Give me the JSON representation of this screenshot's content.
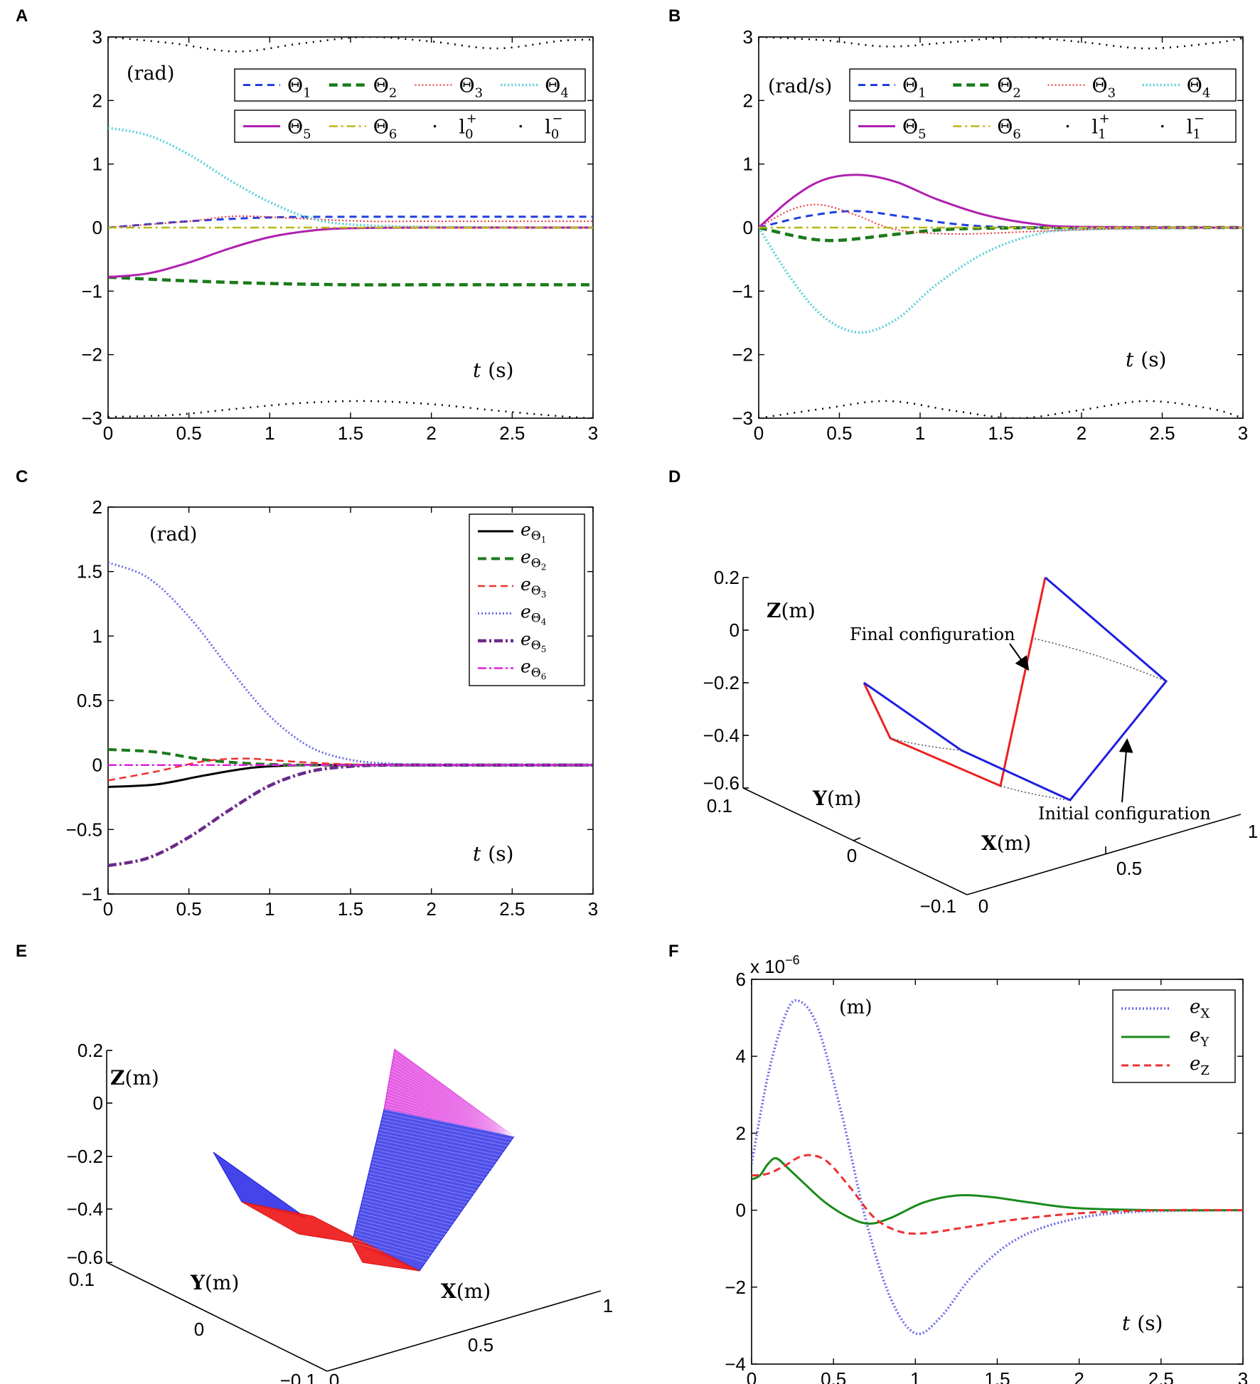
{
  "colors": {
    "blue": "#1f3fe0",
    "green": "#1a7a1a",
    "red": "#ee3030",
    "cyan": "#5ad0d8",
    "magenta": "#b020b0",
    "olive": "#b8b818",
    "black": "#000000",
    "purple": "#6a2a8a",
    "pink": "#e020e0",
    "lightblue": "#6a6ae8",
    "darkgreen": "#1a8a1a"
  },
  "panels": {
    "A": {
      "letter": "A"
    },
    "B": {
      "letter": "B"
    },
    "C": {
      "letter": "C"
    },
    "D": {
      "letter": "D"
    },
    "E": {
      "letter": "E"
    },
    "F": {
      "letter": "F"
    }
  },
  "chart_data": [
    {
      "id": "A",
      "type": "line",
      "unit_label": "(rad)",
      "xlabel_var": "t",
      "xlabel_unit": "(s)",
      "xlim": [
        0,
        3
      ],
      "ylim": [
        -3,
        3
      ],
      "xticks": [
        "0",
        "0.5",
        "1",
        "1.5",
        "2",
        "2.5",
        "3"
      ],
      "yticks": [
        "−3",
        "−2",
        "−1",
        "0",
        "1",
        "2",
        "3"
      ],
      "legend_row1": [
        "Θ1",
        "Θ2",
        "Θ3",
        "Θ4"
      ],
      "legend_row2": [
        "Θ5",
        "Θ6",
        "l0+",
        "l0−"
      ],
      "series": [
        {
          "name": "Θ1",
          "x": [
            0,
            0.5,
            1,
            1.5,
            2,
            2.5,
            3
          ],
          "y": [
            0,
            0.1,
            0.16,
            0.17,
            0.17,
            0.17,
            0.17
          ]
        },
        {
          "name": "Θ2",
          "x": [
            0,
            0.5,
            1,
            1.5,
            2,
            2.5,
            3
          ],
          "y": [
            -0.78,
            -0.84,
            -0.88,
            -0.9,
            -0.9,
            -0.9,
            -0.9
          ]
        },
        {
          "name": "Θ3",
          "x": [
            0,
            0.5,
            0.8,
            1.2,
            1.6,
            2,
            3
          ],
          "y": [
            0,
            0.1,
            0.18,
            0.14,
            0.1,
            0.1,
            0.1
          ]
        },
        {
          "name": "Θ4",
          "x": [
            0,
            0.25,
            0.5,
            0.75,
            1,
            1.25,
            1.5,
            2,
            3
          ],
          "y": [
            1.57,
            1.45,
            1.15,
            0.75,
            0.4,
            0.15,
            0.05,
            0.01,
            0
          ]
        },
        {
          "name": "Θ5",
          "x": [
            0,
            0.25,
            0.5,
            0.75,
            1,
            1.25,
            1.5,
            2,
            3
          ],
          "y": [
            -0.78,
            -0.72,
            -0.55,
            -0.33,
            -0.15,
            -0.05,
            -0.01,
            0,
            0
          ]
        },
        {
          "name": "Θ6",
          "x": [
            0,
            3
          ],
          "y": [
            0,
            0
          ]
        },
        {
          "name": "l0+",
          "x": [
            0,
            0.4,
            0.8,
            1.2,
            1.6,
            2,
            2.4,
            2.8,
            3
          ],
          "y": [
            3,
            2.9,
            2.77,
            2.9,
            3.0,
            2.93,
            2.82,
            2.94,
            2.96
          ]
        },
        {
          "name": "l0−",
          "x": [
            0,
            0.4,
            0.8,
            1.2,
            1.6,
            2,
            2.4,
            2.8,
            3
          ],
          "y": [
            -2.98,
            -2.95,
            -2.85,
            -2.76,
            -2.73,
            -2.78,
            -2.88,
            -2.97,
            -3.0
          ]
        }
      ]
    },
    {
      "id": "B",
      "type": "line",
      "unit_label": "(rad/s)",
      "xlabel_var": "t",
      "xlabel_unit": "(s)",
      "xlim": [
        0,
        3
      ],
      "ylim": [
        -3,
        3
      ],
      "xticks": [
        "0",
        "0.5",
        "1",
        "1.5",
        "2",
        "2.5",
        "3"
      ],
      "yticks": [
        "−3",
        "−2",
        "−1",
        "0",
        "1",
        "2",
        "3"
      ],
      "legend_row1": [
        "Θ̇1",
        "Θ̇2",
        "Θ̇3",
        "Θ̇4"
      ],
      "legend_row2": [
        "Θ̇5",
        "Θ̇6",
        "l1+",
        "l1−"
      ],
      "series": [
        {
          "name": "Θ̇1",
          "x": [
            0,
            0.3,
            0.6,
            0.9,
            1.2,
            1.5,
            2,
            3
          ],
          "y": [
            0,
            0.18,
            0.26,
            0.17,
            0.06,
            0.01,
            0,
            0
          ]
        },
        {
          "name": "Θ̇2",
          "x": [
            0,
            0.3,
            0.5,
            0.8,
            1.1,
            1.4,
            2,
            3
          ],
          "y": [
            0,
            -0.17,
            -0.2,
            -0.12,
            -0.04,
            -0.01,
            0,
            0
          ]
        },
        {
          "name": "Θ̇3",
          "x": [
            0,
            0.2,
            0.38,
            0.6,
            0.8,
            1.0,
            1.3,
            1.7,
            2.2,
            3
          ],
          "y": [
            0,
            0.28,
            0.36,
            0.2,
            0,
            -0.08,
            -0.1,
            -0.06,
            -0.02,
            0
          ]
        },
        {
          "name": "Θ̇4",
          "x": [
            0,
            0.2,
            0.4,
            0.62,
            0.85,
            1.1,
            1.4,
            1.7,
            2,
            3
          ],
          "y": [
            0,
            -0.8,
            -1.4,
            -1.65,
            -1.45,
            -0.9,
            -0.4,
            -0.12,
            -0.03,
            0
          ]
        },
        {
          "name": "Θ̇5",
          "x": [
            0,
            0.2,
            0.4,
            0.62,
            0.85,
            1.1,
            1.4,
            1.7,
            2,
            3
          ],
          "y": [
            0,
            0.45,
            0.75,
            0.83,
            0.72,
            0.45,
            0.2,
            0.06,
            0.01,
            0
          ]
        },
        {
          "name": "Θ̇6",
          "x": [
            0,
            3
          ],
          "y": [
            0,
            0
          ]
        },
        {
          "name": "l1+",
          "x": [
            0,
            0.4,
            0.8,
            1.2,
            1.6,
            2,
            2.4,
            2.8,
            3
          ],
          "y": [
            3,
            2.95,
            2.85,
            2.92,
            3.0,
            2.92,
            2.82,
            2.9,
            2.98
          ]
        },
        {
          "name": "l1−",
          "x": [
            0,
            0.4,
            0.8,
            1.2,
            1.6,
            2,
            2.4,
            2.8,
            3
          ],
          "y": [
            -3,
            -2.85,
            -2.73,
            -2.88,
            -3.0,
            -2.87,
            -2.73,
            -2.85,
            -3.0
          ]
        }
      ]
    },
    {
      "id": "C",
      "type": "line",
      "unit_label": "(rad)",
      "xlabel_var": "t",
      "xlabel_unit": "(s)",
      "xlim": [
        0,
        3
      ],
      "ylim": [
        -1,
        2
      ],
      "xticks": [
        "0",
        "0.5",
        "1",
        "1.5",
        "2",
        "2.5",
        "3"
      ],
      "yticks": [
        "−1",
        "−0.5",
        "0",
        "0.5",
        "1",
        "1.5",
        "2"
      ],
      "legend": [
        "eΘ1",
        "eΘ2",
        "eΘ3",
        "eΘ4",
        "eΘ5",
        "eΘ6"
      ],
      "series": [
        {
          "name": "eΘ1",
          "x": [
            0,
            0.3,
            0.6,
            0.9,
            1.2,
            1.5,
            3
          ],
          "y": [
            -0.17,
            -0.15,
            -0.08,
            -0.02,
            0,
            0,
            0
          ]
        },
        {
          "name": "eΘ2",
          "x": [
            0,
            0.3,
            0.6,
            0.9,
            1.2,
            1.5,
            3
          ],
          "y": [
            0.12,
            0.1,
            0.04,
            0.01,
            0,
            0,
            0
          ]
        },
        {
          "name": "eΘ3",
          "x": [
            0,
            0.3,
            0.6,
            0.85,
            1.1,
            1.4,
            1.8,
            3
          ],
          "y": [
            -0.12,
            -0.05,
            0.03,
            0.05,
            0.03,
            0.01,
            0,
            0
          ]
        },
        {
          "name": "eΘ4",
          "x": [
            0,
            0.25,
            0.5,
            0.75,
            1,
            1.25,
            1.5,
            1.75,
            2,
            3
          ],
          "y": [
            1.57,
            1.45,
            1.15,
            0.75,
            0.38,
            0.14,
            0.04,
            0.01,
            0,
            0
          ]
        },
        {
          "name": "eΘ5",
          "x": [
            0,
            0.25,
            0.5,
            0.75,
            1,
            1.25,
            1.5,
            1.75,
            2,
            3
          ],
          "y": [
            -0.78,
            -0.72,
            -0.56,
            -0.35,
            -0.16,
            -0.05,
            -0.01,
            0,
            0,
            0
          ]
        },
        {
          "name": "eΘ6",
          "x": [
            0,
            3
          ],
          "y": [
            0,
            0
          ]
        }
      ]
    },
    {
      "id": "D",
      "type": "line3d",
      "zlabel_bold": "Z",
      "zlabel_unit": "(m)",
      "ylabel_bold": "Y",
      "ylabel_unit": "(m)",
      "xlabel_bold": "X",
      "xlabel_unit": "(m)",
      "zticks": [
        "0.2",
        "0",
        "−0.2",
        "−0.4",
        "−0.6"
      ],
      "yticks": [
        "0.1",
        "0",
        "−0.1"
      ],
      "xticks": [
        "0",
        "0.5",
        "1"
      ],
      "annotation_final": "Final configuration",
      "annotation_initial": "Initial configuration"
    },
    {
      "id": "E",
      "type": "line3d",
      "zlabel_bold": "Z",
      "zlabel_unit": "(m)",
      "ylabel_bold": "Y",
      "ylabel_unit": "(m)",
      "xlabel_bold": "X",
      "xlabel_unit": "(m)",
      "zticks": [
        "0.2",
        "0",
        "−0.2",
        "−0.4",
        "−0.6"
      ],
      "yticks": [
        "0.1",
        "0",
        "−0.1"
      ],
      "xticks": [
        "0",
        "0.5",
        "1"
      ]
    },
    {
      "id": "F",
      "type": "line",
      "unit_label": "(m)",
      "scale_label": "x 10",
      "scale_exp": "−6",
      "xlabel_var": "t",
      "xlabel_unit": "(s)",
      "xlim": [
        0,
        3
      ],
      "ylim": [
        -4,
        6
      ],
      "xticks": [
        "0",
        "0.5",
        "1",
        "1.5",
        "2",
        "2.5",
        "3"
      ],
      "yticks": [
        "−4",
        "−2",
        "0",
        "2",
        "4",
        "6"
      ],
      "legend": [
        "eX",
        "eY",
        "eZ"
      ],
      "series": [
        {
          "name": "eX",
          "x": [
            0,
            0.1,
            0.2,
            0.28,
            0.4,
            0.55,
            0.7,
            0.85,
            1.0,
            1.15,
            1.35,
            1.6,
            1.9,
            2.3,
            3
          ],
          "y": [
            1.2,
            3.5,
            5.0,
            5.45,
            4.8,
            2.5,
            -0.3,
            -2.3,
            -3.2,
            -2.8,
            -1.7,
            -0.8,
            -0.3,
            -0.05,
            0
          ]
        },
        {
          "name": "eY",
          "x": [
            0,
            0.05,
            0.1,
            0.15,
            0.22,
            0.32,
            0.45,
            0.6,
            0.72,
            0.85,
            1.05,
            1.25,
            1.45,
            1.7,
            2.0,
            2.5,
            3
          ],
          "y": [
            0.8,
            0.9,
            1.2,
            1.35,
            1.1,
            0.7,
            0.2,
            -0.2,
            -0.35,
            -0.2,
            0.2,
            0.38,
            0.35,
            0.2,
            0.05,
            0,
            0
          ]
        },
        {
          "name": "eZ",
          "x": [
            0,
            0.1,
            0.2,
            0.32,
            0.45,
            0.6,
            0.75,
            0.9,
            1.05,
            1.3,
            1.6,
            2.0,
            2.5,
            3
          ],
          "y": [
            0.9,
            0.95,
            1.15,
            1.42,
            1.3,
            0.6,
            -0.2,
            -0.55,
            -0.6,
            -0.45,
            -0.25,
            -0.08,
            0,
            0
          ]
        }
      ]
    }
  ]
}
